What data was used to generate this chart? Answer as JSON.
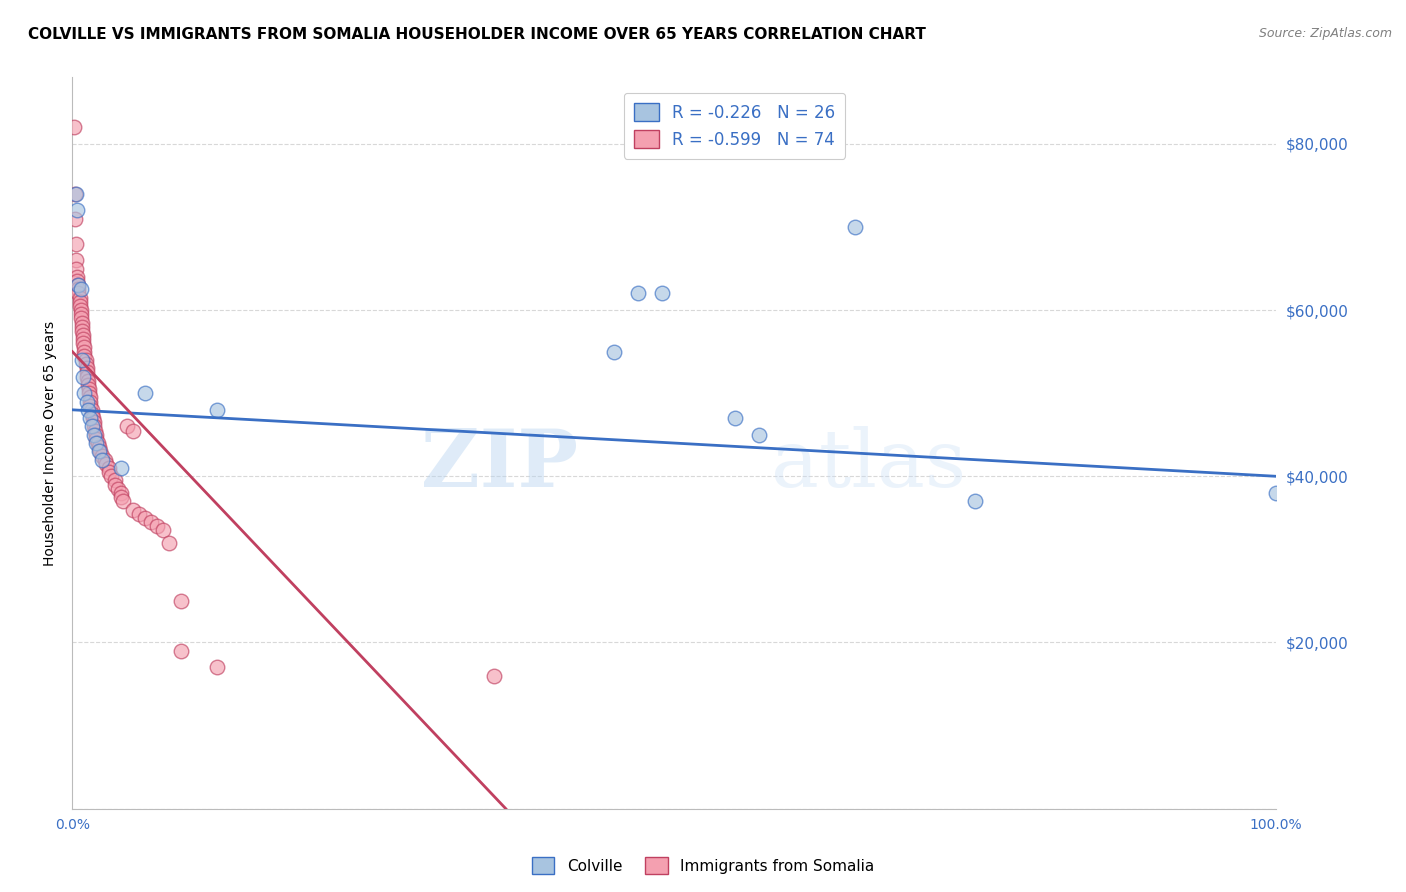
{
  "title": "COLVILLE VS IMMIGRANTS FROM SOMALIA HOUSEHOLDER INCOME OVER 65 YEARS CORRELATION CHART",
  "source": "Source: ZipAtlas.com",
  "ylabel": "Householder Income Over 65 years",
  "xmin": 0.0,
  "xmax": 1.0,
  "ymin": 0,
  "ymax": 88000,
  "yticks": [
    0,
    20000,
    40000,
    60000,
    80000
  ],
  "ytick_labels": [
    "",
    "$20,000",
    "$40,000",
    "$60,000",
    "$80,000"
  ],
  "legend_labels": [
    "Colville",
    "Immigrants from Somalia"
  ],
  "r_colville": -0.226,
  "n_colville": 26,
  "r_somalia": -0.599,
  "n_somalia": 74,
  "colville_color": "#a8c4e0",
  "somalia_color": "#f4a0b0",
  "colville_line_color": "#3a6fc4",
  "somalia_line_color": "#c04060",
  "colville_scatter": [
    [
      0.003,
      74000
    ],
    [
      0.004,
      72000
    ],
    [
      0.005,
      63000
    ],
    [
      0.007,
      62500
    ],
    [
      0.008,
      54000
    ],
    [
      0.009,
      52000
    ],
    [
      0.01,
      50000
    ],
    [
      0.012,
      49000
    ],
    [
      0.013,
      48000
    ],
    [
      0.015,
      47000
    ],
    [
      0.016,
      46000
    ],
    [
      0.018,
      45000
    ],
    [
      0.02,
      44000
    ],
    [
      0.022,
      43000
    ],
    [
      0.025,
      42000
    ],
    [
      0.04,
      41000
    ],
    [
      0.06,
      50000
    ],
    [
      0.12,
      48000
    ],
    [
      0.45,
      55000
    ],
    [
      0.47,
      62000
    ],
    [
      0.49,
      62000
    ],
    [
      0.55,
      47000
    ],
    [
      0.57,
      45000
    ],
    [
      0.65,
      70000
    ],
    [
      0.75,
      37000
    ],
    [
      1.0,
      38000
    ]
  ],
  "somalia_scatter": [
    [
      0.001,
      82000
    ],
    [
      0.002,
      74000
    ],
    [
      0.002,
      71000
    ],
    [
      0.003,
      68000
    ],
    [
      0.003,
      66000
    ],
    [
      0.003,
      65000
    ],
    [
      0.004,
      64000
    ],
    [
      0.004,
      63500
    ],
    [
      0.005,
      63000
    ],
    [
      0.005,
      62500
    ],
    [
      0.005,
      62000
    ],
    [
      0.006,
      61500
    ],
    [
      0.006,
      61000
    ],
    [
      0.006,
      60500
    ],
    [
      0.007,
      60000
    ],
    [
      0.007,
      59500
    ],
    [
      0.007,
      59000
    ],
    [
      0.008,
      58500
    ],
    [
      0.008,
      58000
    ],
    [
      0.008,
      57500
    ],
    [
      0.009,
      57000
    ],
    [
      0.009,
      56500
    ],
    [
      0.009,
      56000
    ],
    [
      0.01,
      55500
    ],
    [
      0.01,
      55000
    ],
    [
      0.01,
      54500
    ],
    [
      0.011,
      54000
    ],
    [
      0.011,
      53500
    ],
    [
      0.012,
      53000
    ],
    [
      0.012,
      52500
    ],
    [
      0.012,
      52000
    ],
    [
      0.013,
      51500
    ],
    [
      0.013,
      51000
    ],
    [
      0.014,
      50500
    ],
    [
      0.014,
      50000
    ],
    [
      0.015,
      49500
    ],
    [
      0.015,
      49000
    ],
    [
      0.015,
      48500
    ],
    [
      0.016,
      48000
    ],
    [
      0.016,
      47500
    ],
    [
      0.017,
      47000
    ],
    [
      0.018,
      46500
    ],
    [
      0.018,
      46000
    ],
    [
      0.019,
      45500
    ],
    [
      0.02,
      45000
    ],
    [
      0.02,
      44500
    ],
    [
      0.021,
      44000
    ],
    [
      0.022,
      43500
    ],
    [
      0.023,
      43000
    ],
    [
      0.025,
      42500
    ],
    [
      0.027,
      42000
    ],
    [
      0.028,
      41500
    ],
    [
      0.03,
      41000
    ],
    [
      0.03,
      40500
    ],
    [
      0.032,
      40000
    ],
    [
      0.035,
      39500
    ],
    [
      0.035,
      39000
    ],
    [
      0.038,
      38500
    ],
    [
      0.04,
      38000
    ],
    [
      0.04,
      37500
    ],
    [
      0.042,
      37000
    ],
    [
      0.045,
      46000
    ],
    [
      0.05,
      45500
    ],
    [
      0.05,
      36000
    ],
    [
      0.055,
      35500
    ],
    [
      0.06,
      35000
    ],
    [
      0.065,
      34500
    ],
    [
      0.07,
      34000
    ],
    [
      0.075,
      33500
    ],
    [
      0.08,
      32000
    ],
    [
      0.09,
      25000
    ],
    [
      0.09,
      19000
    ],
    [
      0.12,
      17000
    ],
    [
      0.35,
      16000
    ]
  ],
  "watermark": "ZIPatlas",
  "background_color": "#ffffff",
  "grid_color": "#d8d8d8",
  "title_fontsize": 11,
  "axis_label_fontsize": 10,
  "tick_fontsize": 10,
  "colville_regline_x": [
    0.0,
    1.0
  ],
  "colville_regline_y": [
    48000,
    40000
  ],
  "somalia_regline_x": [
    0.0,
    0.36
  ],
  "somalia_regline_y": [
    55000,
    0
  ]
}
